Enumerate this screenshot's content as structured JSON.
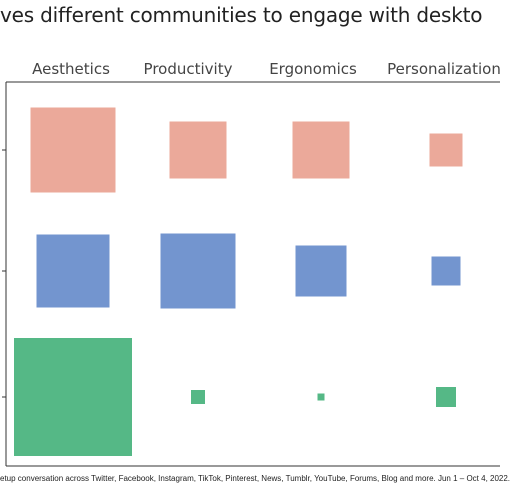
{
  "title": "ves different communities to engage with deskto",
  "footer": "etup conversation across Twitter, Facebook, Instagram, TikTok, Pinterest, News, Tumblr, YouTube, Forums, Blog and more.  Jun 1 – Oct 4, 2022.",
  "chart_data": {
    "type": "heatmap",
    "subtype": "proportional-squares",
    "columns": [
      "Aesthetics",
      "Productivity",
      "Ergonomics",
      "Personalization"
    ],
    "rows": [
      {
        "color": "#eba99a",
        "values": [
          85,
          57,
          57,
          33
        ]
      },
      {
        "color": "#7395cf",
        "values": [
          73,
          75,
          51,
          29
        ]
      },
      {
        "color": "#55b886",
        "values": [
          118,
          14,
          7,
          20
        ]
      }
    ],
    "value_meaning": "relative side length of each square",
    "grid": false,
    "legend": "none"
  }
}
